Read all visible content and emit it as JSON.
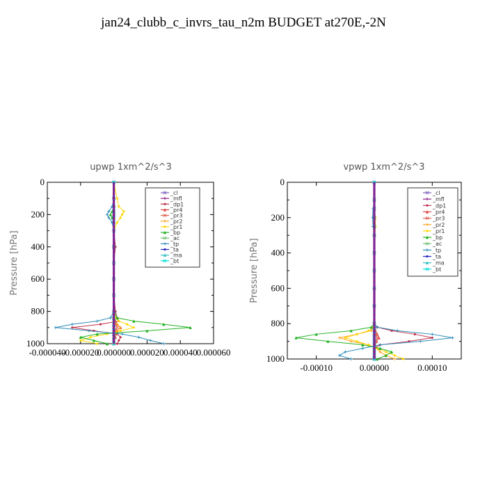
{
  "title": "jan24_clubb_c_invrs_tau_n2m  BUDGET at270E,-2N",
  "chart_data": [
    {
      "type": "line",
      "title": "upwp   1xm^2/s^3",
      "xlabel": "",
      "ylabel": "Pressure [hPa]",
      "xlim": [
        -4e-05,
        6e-05
      ],
      "ylim": [
        1000,
        0
      ],
      "xticks": [
        -4e-05,
        -2e-05,
        0.0,
        2e-05,
        4e-05,
        6e-05
      ],
      "xtick_labels": [
        "-0.000040",
        "-0.000020",
        "0.000000",
        "0.000020",
        "0.000040",
        "0.000060"
      ],
      "yticks": [
        0,
        200,
        400,
        600,
        800,
        1000
      ],
      "ytick_labels": [
        "0",
        "200",
        "400",
        "600",
        "800",
        "1000"
      ],
      "legend_position": "top-right",
      "p": [
        0,
        100,
        150,
        180,
        200,
        220,
        250,
        300,
        400,
        500,
        600,
        700,
        800,
        840,
        860,
        880,
        900,
        920,
        940,
        960,
        980,
        1000
      ],
      "series": [
        {
          "name": "_cl",
          "color": "#7f5fbf",
          "values": [
            0,
            0,
            0,
            0,
            0,
            0,
            0,
            0,
            0,
            0,
            0,
            0,
            0,
            0,
            0,
            0,
            0,
            0,
            0,
            0,
            0,
            0
          ]
        },
        {
          "name": "_mfl",
          "color": "#8b1a8b",
          "values": [
            0,
            0,
            0,
            0,
            0,
            0,
            0,
            0,
            0,
            0,
            0,
            0,
            0,
            0,
            0,
            0,
            0,
            0,
            0,
            0,
            0,
            0
          ]
        },
        {
          "name": "_dp1",
          "color": "#c0304a",
          "values": [
            0,
            0,
            0,
            0,
            0,
            0,
            0,
            0,
            1e-06,
            0,
            0,
            0,
            1e-06,
            2e-06,
            3e-06,
            -8e-06,
            -2.5e-05,
            -1.2e-05,
            2e-06,
            4e-06,
            3e-06,
            2e-06
          ]
        },
        {
          "name": "_pr4",
          "color": "#e04040",
          "values": [
            0,
            0,
            0,
            0,
            0,
            0,
            0,
            0,
            0,
            0,
            0,
            0,
            0,
            0,
            1e-06,
            2e-06,
            4e-06,
            2e-06,
            1e-06,
            1e-06,
            0,
            0
          ]
        },
        {
          "name": "_pr3",
          "color": "#e06050",
          "values": [
            0,
            0,
            0,
            0,
            0,
            0,
            0,
            0,
            0,
            0,
            0,
            0,
            0,
            0,
            0,
            1e-06,
            2e-06,
            1e-06,
            0,
            0,
            0,
            0
          ]
        },
        {
          "name": "_pr2",
          "color": "#ffa020",
          "values": [
            0,
            0,
            0,
            0,
            0,
            0,
            0,
            0,
            0,
            0,
            0,
            0,
            0,
            0,
            0,
            2e-06,
            4e-06,
            2e-06,
            1e-06,
            0,
            0,
            0
          ]
        },
        {
          "name": "_pr1",
          "color": "#ffd700",
          "values": [
            0,
            2e-06,
            3e-06,
            6e-06,
            5e-06,
            4e-06,
            2e-06,
            0,
            0,
            0,
            0,
            0,
            0,
            1e-06,
            3e-06,
            8e-06,
            1.2e-05,
            4e-06,
            -4e-06,
            -1.4e-05,
            -2e-05,
            -1e-05
          ]
        },
        {
          "name": "_bp",
          "color": "#20b020",
          "values": [
            0,
            0,
            0,
            -1e-06,
            -2e-06,
            -1e-06,
            0,
            0,
            0,
            0,
            0,
            0,
            0,
            2e-06,
            1.2e-05,
            3e-05,
            4.6e-05,
            2e-05,
            -1e-05,
            -2e-05,
            -1.2e-05,
            -4e-06
          ]
        },
        {
          "name": "_ac",
          "color": "#70c070",
          "values": [
            0,
            0,
            0,
            0,
            0,
            0,
            0,
            0,
            0,
            0,
            0,
            0,
            0,
            0,
            0,
            0,
            0,
            0,
            0,
            0,
            0,
            0
          ]
        },
        {
          "name": "_tp",
          "color": "#2a8ab8",
          "values": [
            0,
            0,
            -1e-06,
            -3e-06,
            -4e-06,
            -3e-06,
            -1e-06,
            0,
            0,
            0,
            0,
            0,
            0,
            -2e-06,
            -1e-05,
            -2.5e-05,
            -3.5e-05,
            -1.5e-05,
            5e-06,
            1.5e-05,
            2.2e-05,
            3e-05
          ]
        },
        {
          "name": "_ta",
          "color": "#2020c0",
          "values": [
            0,
            0,
            0,
            0,
            0,
            0,
            0,
            0,
            0,
            0,
            0,
            0,
            0,
            0,
            0,
            0,
            0,
            0,
            0,
            0,
            0,
            0
          ]
        },
        {
          "name": "_ma",
          "color": "#30c0c0",
          "values": [
            0,
            0,
            0,
            0,
            0,
            0,
            0,
            0,
            0,
            0,
            0,
            0,
            0,
            0,
            0,
            0,
            0,
            0,
            0,
            0,
            0,
            0
          ]
        },
        {
          "name": "_bt",
          "color": "#00dddd",
          "values": [
            0,
            0,
            0,
            0,
            0,
            0,
            0,
            0,
            0,
            0,
            0,
            0,
            0,
            0,
            0,
            0,
            0,
            0,
            0,
            0,
            0,
            0
          ]
        }
      ]
    },
    {
      "type": "line",
      "title": "vpwp   1xm^2/s^3",
      "xlabel": "",
      "ylabel": "Pressure [hPa]",
      "xlim": [
        -0.00015,
        0.00015
      ],
      "ylim": [
        1000,
        0
      ],
      "xticks": [
        -0.0001,
        0.0,
        0.0001
      ],
      "xtick_labels": [
        "-0.00010",
        "0.00000",
        "0.00010"
      ],
      "yticks": [
        0,
        200,
        400,
        600,
        800,
        1000
      ],
      "ytick_labels": [
        "0",
        "200",
        "400",
        "600",
        "800",
        "1000"
      ],
      "legend_position": "top-right",
      "p": [
        0,
        100,
        150,
        200,
        250,
        300,
        400,
        500,
        600,
        700,
        800,
        820,
        840,
        860,
        880,
        900,
        920,
        940,
        960,
        980,
        1000
      ],
      "series": [
        {
          "name": "_cl",
          "color": "#7f5fbf",
          "values": [
            0,
            0,
            0,
            0,
            0,
            0,
            0,
            0,
            0,
            0,
            0,
            0,
            0,
            0,
            0,
            0,
            0,
            0,
            0,
            0,
            0
          ]
        },
        {
          "name": "_mfl",
          "color": "#8b1a8b",
          "values": [
            0,
            0,
            0,
            0,
            0,
            0,
            0,
            0,
            0,
            0,
            0,
            0,
            0,
            0,
            0,
            0,
            0,
            0,
            0,
            0,
            0
          ]
        },
        {
          "name": "_dp1",
          "color": "#c0304a",
          "values": [
            0,
            0,
            0,
            0,
            0,
            0,
            0,
            0,
            0,
            0,
            0,
            5e-06,
            3e-05,
            7e-05,
            0.0001,
            6e-05,
            1e-05,
            0,
            0,
            0,
            0
          ]
        },
        {
          "name": "_pr4",
          "color": "#e04040",
          "values": [
            0,
            0,
            0,
            0,
            0,
            0,
            0,
            0,
            0,
            0,
            0,
            0,
            2e-06,
            5e-06,
            8e-06,
            4e-06,
            1e-06,
            0,
            0,
            0,
            0
          ]
        },
        {
          "name": "_pr3",
          "color": "#e06050",
          "values": [
            0,
            0,
            0,
            0,
            0,
            0,
            0,
            0,
            0,
            0,
            0,
            0,
            1e-06,
            3e-06,
            5e-06,
            3e-06,
            1e-06,
            0,
            0,
            0,
            0
          ]
        },
        {
          "name": "_pr2",
          "color": "#ffa020",
          "values": [
            0,
            0,
            0,
            0,
            0,
            0,
            0,
            0,
            0,
            0,
            0,
            0,
            -5e-06,
            -3e-05,
            -6e-05,
            -4e-05,
            -1e-05,
            5e-06,
            1e-05,
            2e-05,
            3.5e-05
          ]
        },
        {
          "name": "_pr1",
          "color": "#ffd700",
          "values": [
            0,
            0,
            0,
            2e-06,
            2e-06,
            1e-06,
            0,
            0,
            0,
            0,
            0,
            -2e-06,
            -1e-05,
            -3e-05,
            -5e-05,
            -3e-05,
            -1e-05,
            5e-06,
            2e-05,
            3.5e-05,
            5e-05
          ]
        },
        {
          "name": "_bp",
          "color": "#20b020",
          "values": [
            0,
            0,
            0,
            0,
            0,
            0,
            0,
            0,
            0,
            0,
            0,
            -5e-06,
            -4e-05,
            -0.0001,
            -0.000135,
            -8e-05,
            -2e-05,
            1e-05,
            3e-05,
            2e-05,
            5e-06
          ]
        },
        {
          "name": "_ac",
          "color": "#70c070",
          "values": [
            0,
            0,
            0,
            0,
            0,
            0,
            0,
            0,
            0,
            0,
            0,
            0,
            0,
            0,
            0,
            0,
            0,
            0,
            0,
            0,
            0
          ]
        },
        {
          "name": "_tp",
          "color": "#2a8ab8",
          "values": [
            0,
            0,
            -2e-06,
            -3e-06,
            -2e-06,
            0,
            0,
            0,
            0,
            0,
            0,
            5e-06,
            4e-05,
            0.0001,
            0.000135,
            8e-05,
            1e-05,
            -2e-05,
            -5e-05,
            -6e-05,
            -4e-05
          ]
        },
        {
          "name": "_ta",
          "color": "#2020c0",
          "values": [
            0,
            0,
            0,
            0,
            0,
            0,
            0,
            0,
            0,
            0,
            0,
            0,
            0,
            0,
            0,
            0,
            0,
            0,
            0,
            0,
            0
          ]
        },
        {
          "name": "_ma",
          "color": "#30c0c0",
          "values": [
            0,
            0,
            0,
            0,
            0,
            0,
            0,
            0,
            0,
            0,
            0,
            0,
            0,
            0,
            0,
            0,
            0,
            0,
            0,
            0,
            0
          ]
        },
        {
          "name": "_bt",
          "color": "#00dddd",
          "values": [
            0,
            0,
            0,
            0,
            0,
            0,
            0,
            0,
            0,
            0,
            0,
            0,
            0,
            0,
            0,
            0,
            0,
            0,
            0,
            0,
            0
          ]
        }
      ]
    }
  ]
}
